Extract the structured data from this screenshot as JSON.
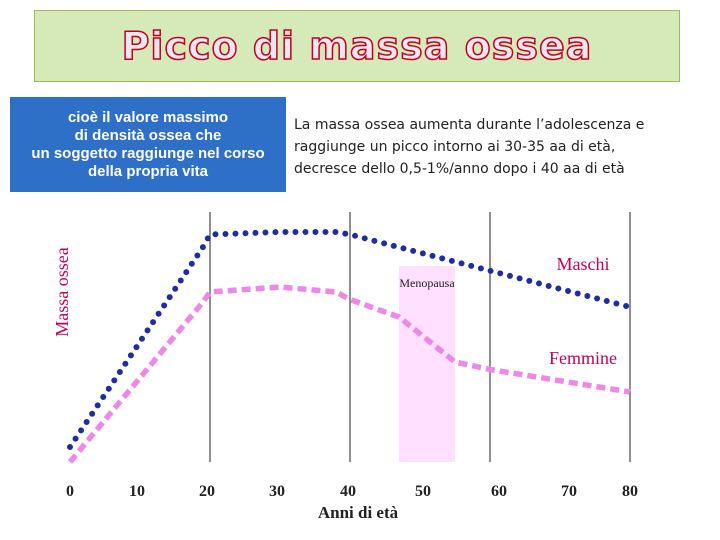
{
  "title": "Picco di massa ossea",
  "definition": "cioè il valore massimo\ndi densità ossea che\nun soggetto raggiunge nel corso\ndella propria vita",
  "description": "La massa ossea aumenta durante l’adolescenza e\nraggiunge un picco intorno ai 30-35 aa di età,\ndecresce  dello 0,5-1%/anno dopo i 40 aa di età",
  "chart_data": {
    "type": "line",
    "xlabel": "Anni di età",
    "ylabel": "Massa ossea",
    "xlim": [
      0,
      80
    ],
    "ylim": [
      0,
      100
    ],
    "x_ticks": [
      0,
      10,
      20,
      30,
      40,
      50,
      60,
      70,
      80
    ],
    "x_tick_labels": [
      "0",
      "10",
      "20",
      "30",
      "40",
      "50",
      "60",
      "70",
      "80"
    ],
    "vertical_gridlines_at": [
      20,
      40,
      60,
      80
    ],
    "series": [
      {
        "name": "Maschi",
        "color": "#1f2d9e",
        "style": "dotted",
        "x": [
          0,
          19,
          20,
          30,
          38,
          40,
          80
        ],
        "y": [
          6,
          86,
          91,
          92,
          92,
          91,
          62
        ]
      },
      {
        "name": "Femmine",
        "color": "#ee88e8",
        "style": "dashed",
        "x": [
          0,
          19,
          20,
          30,
          38,
          40,
          47,
          55,
          60,
          80
        ],
        "y": [
          0,
          64,
          68,
          70,
          68,
          65,
          58,
          40,
          37,
          28
        ]
      }
    ],
    "annotations": [
      {
        "text": "Menopausa",
        "x_range": [
          47,
          55
        ],
        "color": "#ffe0ff"
      }
    ]
  }
}
